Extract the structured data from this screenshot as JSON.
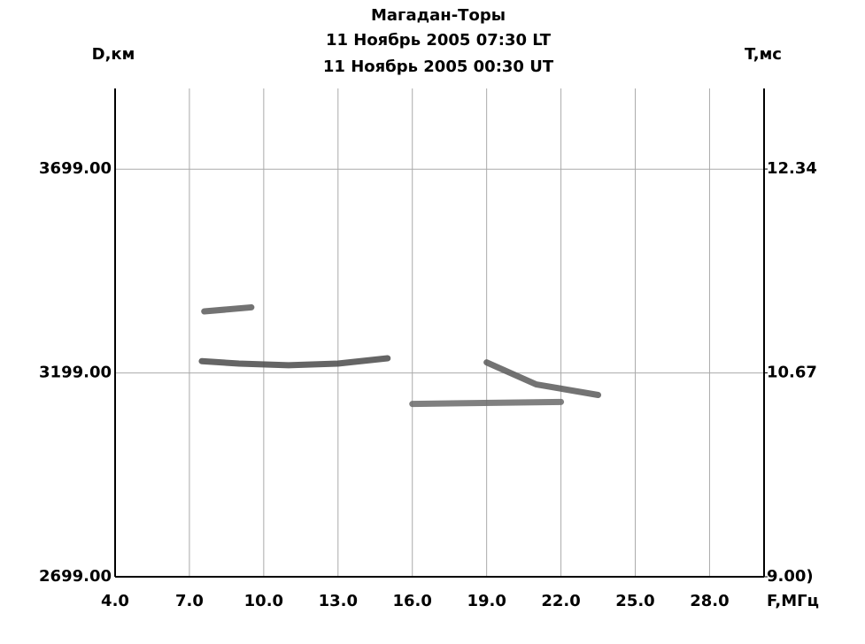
{
  "chart_data": {
    "type": "line",
    "title": "Магадан-Торы",
    "subtitle": [
      "11 Ноябрь 2005 07:30 LT",
      "11 Ноябрь 2005 00:30 UT"
    ],
    "y_label": "D,км",
    "y2_label": "T,мс",
    "x_label": "F,МГц",
    "xlim": [
      4,
      30.2
    ],
    "ylim": [
      2699,
      3897
    ],
    "y2lim": [
      9.0,
      13.0
    ],
    "xticks": [
      {
        "value": 4,
        "label": "4.0"
      },
      {
        "value": 7,
        "label": "7.0"
      },
      {
        "value": 10,
        "label": "10.0"
      },
      {
        "value": 13,
        "label": "13.0"
      },
      {
        "value": 16,
        "label": "16.0"
      },
      {
        "value": 19,
        "label": "19.0"
      },
      {
        "value": 22,
        "label": "22.0"
      },
      {
        "value": 25,
        "label": "25.0"
      },
      {
        "value": 28,
        "label": "28.0"
      }
    ],
    "yticks": [
      {
        "value": 2699,
        "label": "2699.00"
      },
      {
        "value": 3199,
        "label": "3199.00"
      },
      {
        "value": 3699,
        "label": "3699.00"
      }
    ],
    "y2ticks": [
      {
        "value": 9.0,
        "label": "9.00)"
      },
      {
        "value": 10.67,
        "label": "10.67"
      },
      {
        "value": 12.34,
        "label": "12.34"
      }
    ],
    "grid": true,
    "series": [
      {
        "color": "#4a4a4a",
        "x": [
          7.5,
          9,
          11,
          13,
          15
        ],
        "values": [
          3228,
          3222,
          3218,
          3222,
          3235
        ]
      },
      {
        "color": "#5a5a5a",
        "x": [
          7.6,
          9.5
        ],
        "values": [
          3350,
          3360
        ]
      },
      {
        "color": "#5a5a5a",
        "x": [
          19,
          21,
          23.5
        ],
        "values": [
          3225,
          3171,
          3145
        ]
      },
      {
        "color": "#6a6a6a",
        "x": [
          16,
          22
        ],
        "values": [
          3123,
          3128
        ]
      }
    ]
  }
}
